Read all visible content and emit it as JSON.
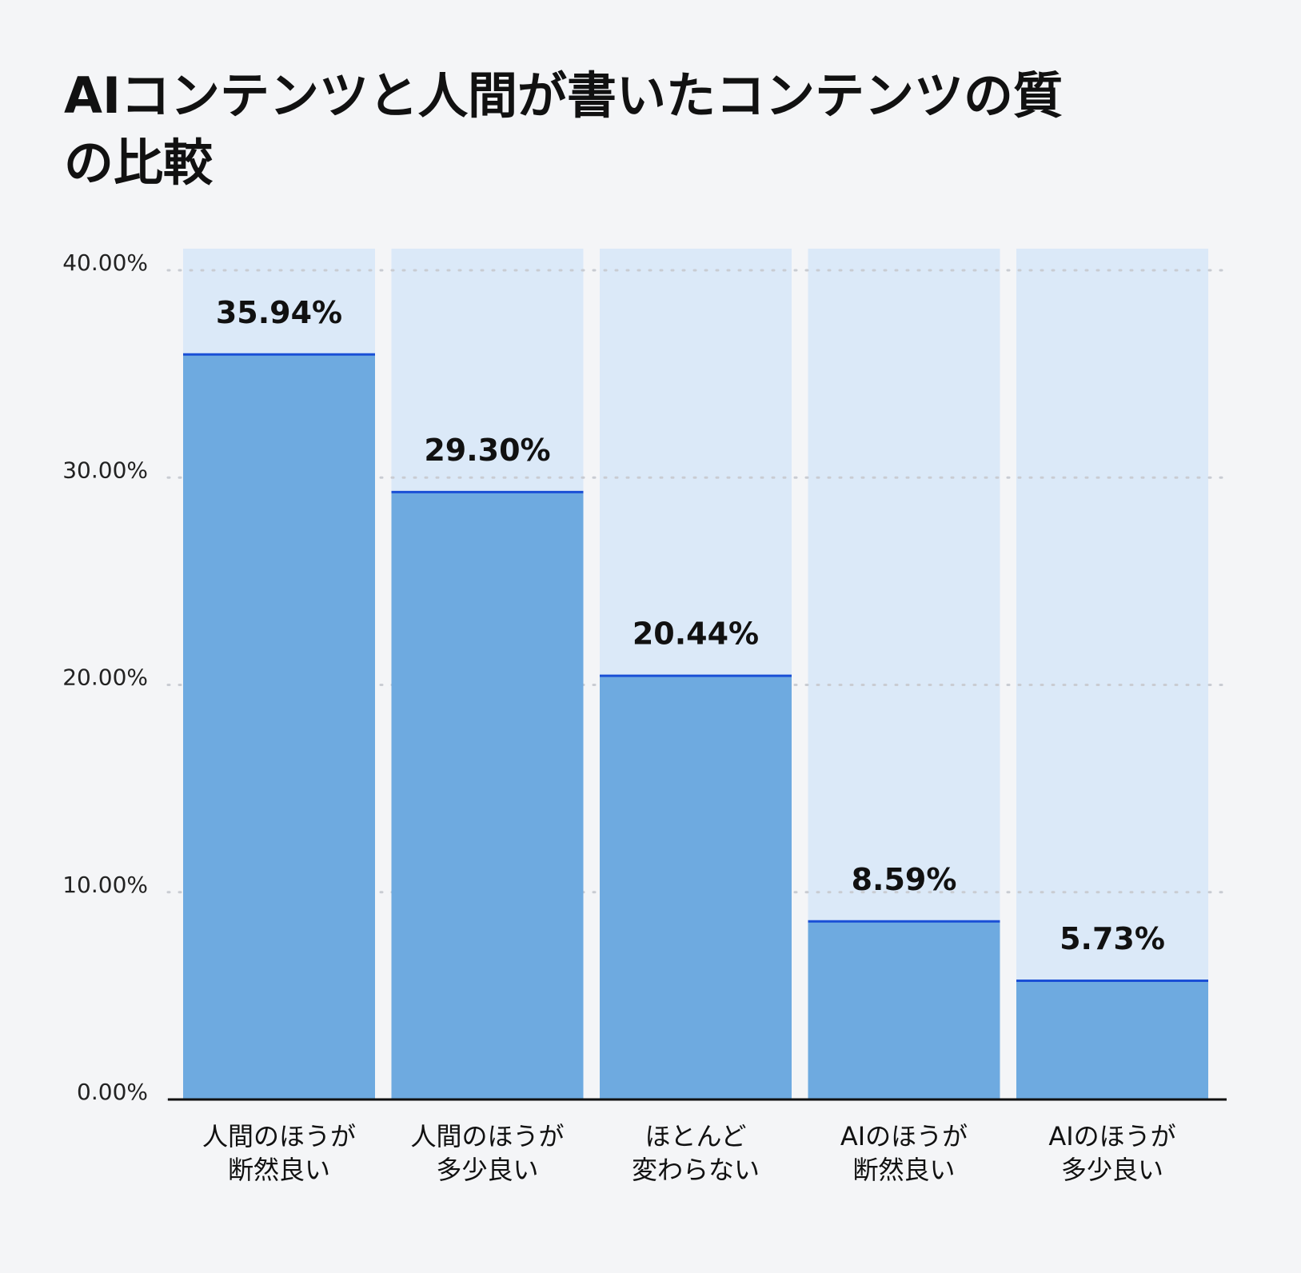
{
  "chart_data": {
    "type": "bar",
    "title": "AIコンテンツと人間が書いたコンテンツの質の比較",
    "categories": [
      "人間のほうが\n断然良い",
      "人間のほうが\n多少良い",
      "ほとんど\n変わらない",
      "AIのほうが\n断然良い",
      "AIのほうが\n多少良い"
    ],
    "values": [
      35.94,
      29.3,
      20.44,
      8.59,
      5.73
    ],
    "value_labels": [
      "35.94%",
      "29.30%",
      "20.44%",
      "8.59%",
      "5.73%"
    ],
    "color": "#6eaae0",
    "top_line_color": "#1a4fd6",
    "background_color": "#dbe9f8",
    "ylim": [
      0,
      40
    ],
    "yticks": [
      {
        "value": 0,
        "label": "0.00%"
      },
      {
        "value": 10,
        "label": "10.00%"
      },
      {
        "value": 20,
        "label": "20.00%"
      },
      {
        "value": 30,
        "label": "30.00%"
      },
      {
        "value": 40,
        "label": "40.00%"
      }
    ],
    "grid": true
  }
}
